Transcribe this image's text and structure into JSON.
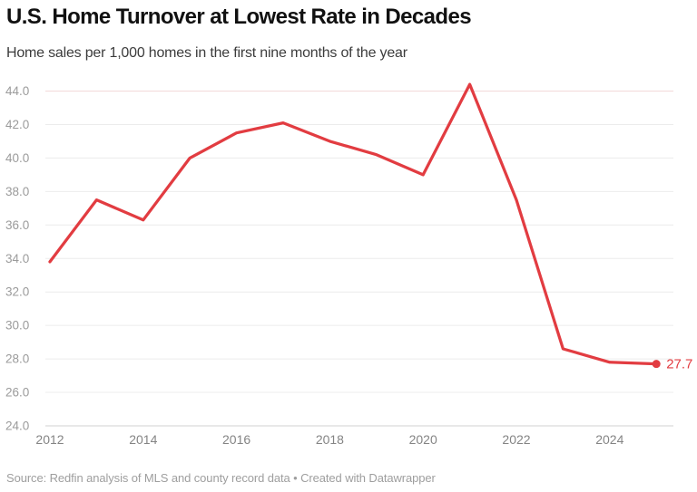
{
  "chart_data": {
    "type": "line",
    "title": "U.S. Home Turnover at Lowest Rate in Decades",
    "subtitle": "Home sales per 1,000 homes in the first nine months of the year",
    "series_name": "Home sales per 1,000 homes",
    "x": [
      2012,
      2013,
      2014,
      2015,
      2016,
      2017,
      2018,
      2019,
      2020,
      2021,
      2022,
      2023,
      2024,
      2025
    ],
    "values": [
      33.8,
      37.5,
      36.3,
      40.0,
      41.5,
      42.1,
      41.0,
      40.2,
      39.0,
      44.4,
      37.5,
      28.6,
      27.8,
      27.7
    ],
    "endpoint_label": "27.7",
    "xlim": [
      2012,
      2025
    ],
    "ylim": [
      24.0,
      44.4
    ],
    "grid": "on",
    "legend": "none",
    "x_ticks": [
      {
        "value": 2012,
        "label": "2012"
      },
      {
        "value": 2014,
        "label": "2014"
      },
      {
        "value": 2016,
        "label": "2016"
      },
      {
        "value": 2018,
        "label": "2018"
      },
      {
        "value": 2020,
        "label": "2020"
      },
      {
        "value": 2022,
        "label": "2022"
      },
      {
        "value": 2024,
        "label": "2024"
      }
    ],
    "y_ticks": [
      {
        "value": 24,
        "label": "24.0"
      },
      {
        "value": 26,
        "label": "26.0"
      },
      {
        "value": 28,
        "label": "28.0"
      },
      {
        "value": 30,
        "label": "30.0"
      },
      {
        "value": 32,
        "label": "32.0"
      },
      {
        "value": 34,
        "label": "34.0"
      },
      {
        "value": 36,
        "label": "36.0"
      },
      {
        "value": 38,
        "label": "38.0"
      },
      {
        "value": 40,
        "label": "40.0"
      },
      {
        "value": 42,
        "label": "42.0"
      },
      {
        "value": 44,
        "label": "44.0"
      }
    ],
    "colors": {
      "line": "#e23c41",
      "grid": "#ececec",
      "top_grid": "#f3dada",
      "baseline": "#d2d2d2",
      "y_tick_text": "#9b9b9b",
      "x_tick_text": "#848484"
    }
  },
  "footer": {
    "text": "Source: Redfin analysis of MLS and county record data • Created with Datawrapper"
  }
}
